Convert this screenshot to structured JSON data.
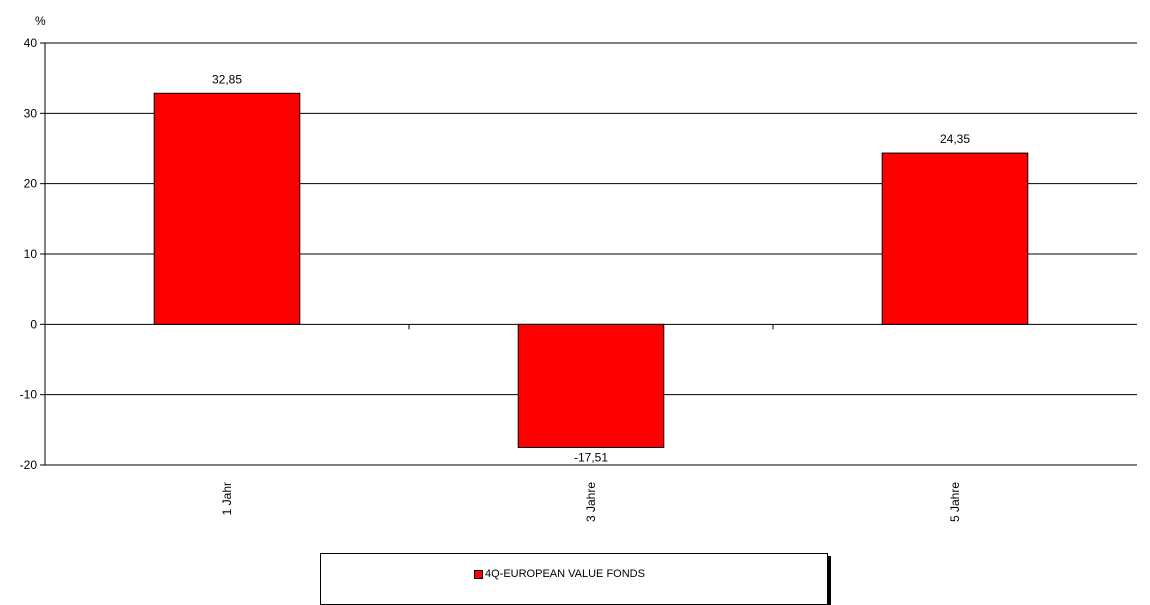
{
  "chart_data": {
    "type": "bar",
    "categories": [
      "1 Jahr",
      "3 Jahre",
      "5 Jahre"
    ],
    "series": [
      {
        "name": "4Q-EUROPEAN VALUE FONDS",
        "values": [
          32.85,
          -17.51,
          24.35
        ],
        "labels": [
          "32,85",
          "-17,51",
          "24,35"
        ],
        "color": "#ff0000"
      }
    ],
    "ylabel": "%",
    "ylim": [
      -20,
      40
    ],
    "yticks": [
      40,
      30,
      20,
      10,
      0,
      -10,
      -20
    ],
    "grid": true,
    "legend_position": "bottom"
  }
}
